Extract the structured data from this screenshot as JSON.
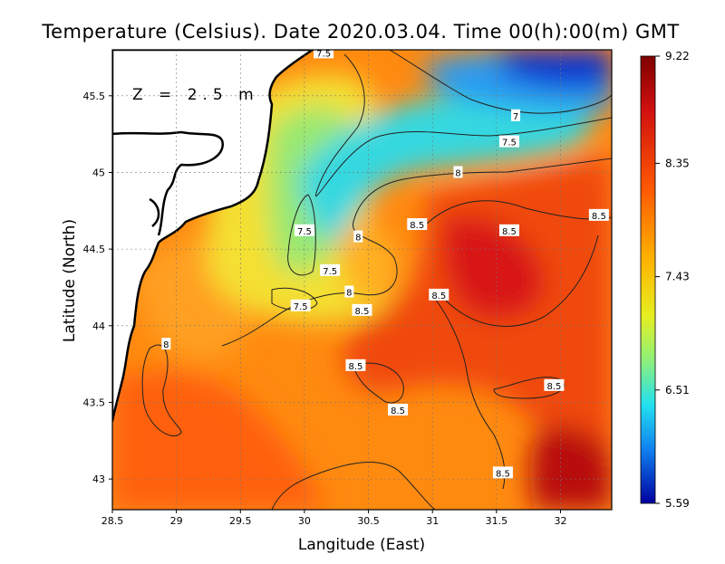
{
  "chart_data": {
    "type": "heatmap",
    "title": "Temperature (Celsius). Date 2020.03.04. Time 00(h):00(m) GMT",
    "xlabel": "Langitude (East)",
    "ylabel": "Latitude (North)",
    "depth_label": "Z = 2.5 m",
    "xlim": [
      28.5,
      32.4
    ],
    "ylim": [
      42.8,
      45.8
    ],
    "xticks": [
      28.5,
      29,
      29.5,
      30,
      30.5,
      31,
      31.5,
      32
    ],
    "xtick_labels": [
      "28.5",
      "29",
      "29.5",
      "30",
      "30.5",
      "31",
      "31.5",
      "32"
    ],
    "yticks": [
      43,
      43.5,
      44,
      44.5,
      45,
      45.5
    ],
    "ytick_labels": [
      "43",
      "43.5",
      "44",
      "44.5",
      "45",
      "45.5"
    ],
    "grid": true,
    "colorbar": {
      "min": 5.59,
      "max": 9.22,
      "ticks": [
        9.22,
        8.35,
        7.43,
        6.51,
        5.59
      ],
      "tick_labels": [
        "9.22",
        "8.35",
        "7.43",
        "6.51",
        "5.59"
      ]
    },
    "contour_labels": [
      {
        "text": "7.5",
        "lon": 30.15,
        "lat": 45.78
      },
      {
        "text": "7",
        "lon": 31.65,
        "lat": 45.37
      },
      {
        "text": "7.5",
        "lon": 31.6,
        "lat": 45.2
      },
      {
        "text": "8",
        "lon": 31.2,
        "lat": 45.0
      },
      {
        "text": "8.5",
        "lon": 32.3,
        "lat": 44.72
      },
      {
        "text": "8.5",
        "lon": 30.88,
        "lat": 44.66
      },
      {
        "text": "8.5",
        "lon": 31.6,
        "lat": 44.62
      },
      {
        "text": "7.5",
        "lon": 30.0,
        "lat": 44.62
      },
      {
        "text": "8",
        "lon": 30.42,
        "lat": 44.58
      },
      {
        "text": "7.5",
        "lon": 30.2,
        "lat": 44.36
      },
      {
        "text": "8",
        "lon": 30.35,
        "lat": 44.22
      },
      {
        "text": "8.5",
        "lon": 31.05,
        "lat": 44.2
      },
      {
        "text": "7.5",
        "lon": 29.97,
        "lat": 44.13
      },
      {
        "text": "8.5",
        "lon": 30.45,
        "lat": 44.1
      },
      {
        "text": "8",
        "lon": 28.92,
        "lat": 43.88
      },
      {
        "text": "8.5",
        "lon": 30.4,
        "lat": 43.74
      },
      {
        "text": "8.5",
        "lon": 31.95,
        "lat": 43.61
      },
      {
        "text": "8.5",
        "lon": 30.73,
        "lat": 43.45
      },
      {
        "text": "8.5",
        "lon": 31.55,
        "lat": 43.04
      }
    ]
  }
}
